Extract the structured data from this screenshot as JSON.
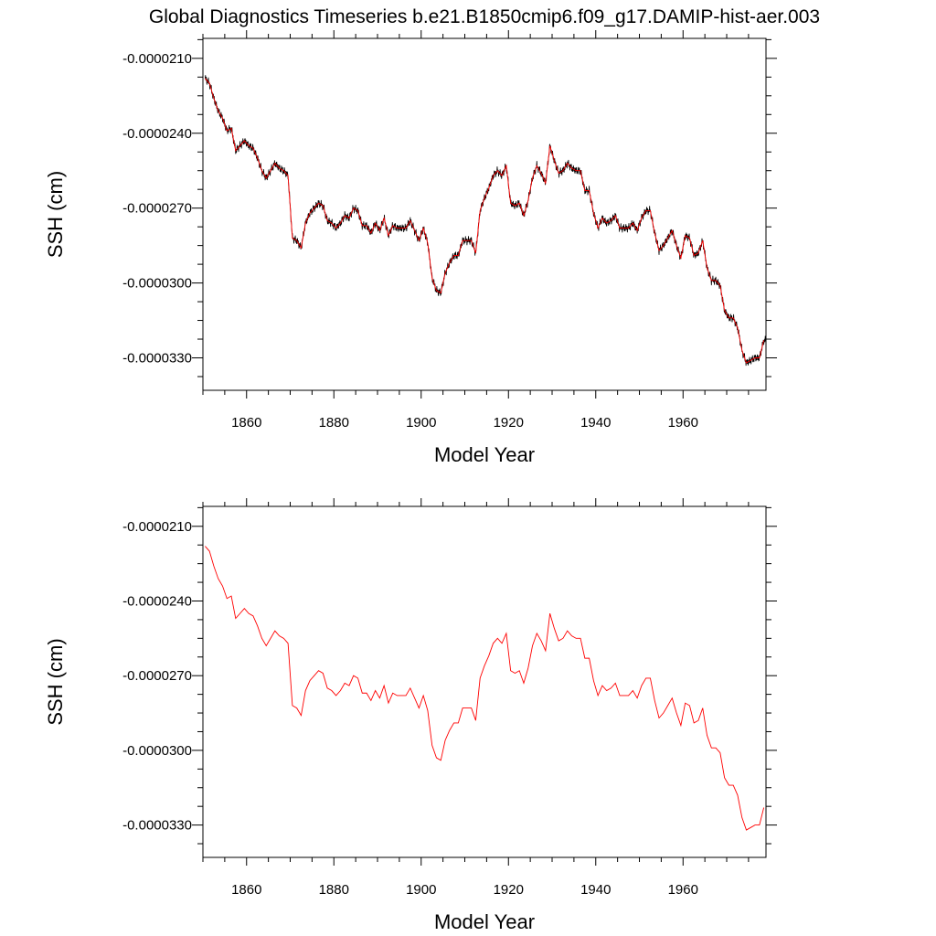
{
  "figure": {
    "title": "Global Diagnostics Timeseries b.e21.B1850cmip6.f09_g17.DAMIP-hist-aer.003"
  },
  "chart_data": [
    {
      "type": "line",
      "title": "",
      "xlabel": "Model Year",
      "ylabel": "SSH (cm)",
      "xlim": [
        1850,
        1979
      ],
      "ylim": [
        -3.43e-05,
        -2.02e-05
      ],
      "xticks": [
        1860,
        1880,
        1900,
        1920,
        1940,
        1960
      ],
      "xtick_labels": [
        "1860",
        "1880",
        "1900",
        "1920",
        "1940",
        "1960"
      ],
      "yticks": [
        -2.1e-05,
        -2.4e-05,
        -2.7e-05,
        -3e-05,
        -3.3e-05
      ],
      "ytick_labels": [
        "-0.0000210",
        "-0.0000240",
        "-0.0000270",
        "-0.0000300",
        "-0.0000330"
      ],
      "grid": false,
      "series": [
        {
          "color": "#000000",
          "style": "monthly",
          "x": [
            1850.5,
            1851.5,
            1852.5,
            1853.5,
            1854.5,
            1855.5,
            1856.5,
            1857.5,
            1858.5,
            1859.5,
            1860.5,
            1861.5,
            1862.5,
            1863.5,
            1864.5,
            1865.5,
            1866.5,
            1867.5,
            1868.5,
            1869.5,
            1870.5,
            1871.5,
            1872.5,
            1873.5,
            1874.5,
            1875.5,
            1876.5,
            1877.5,
            1878.5,
            1879.5,
            1880.5,
            1881.5,
            1882.5,
            1883.5,
            1884.5,
            1885.5,
            1886.5,
            1887.5,
            1888.5,
            1889.5,
            1890.5,
            1891.5,
            1892.5,
            1893.5,
            1894.5,
            1895.5,
            1896.5,
            1897.5,
            1898.5,
            1899.5,
            1900.5,
            1901.5,
            1902.5,
            1903.5,
            1904.5,
            1905.5,
            1906.5,
            1907.5,
            1908.5,
            1909.5,
            1910.5,
            1911.5,
            1912.5,
            1913.5,
            1914.5,
            1915.5,
            1916.5,
            1917.5,
            1918.5,
            1919.5,
            1920.5,
            1921.5,
            1922.5,
            1923.5,
            1924.5,
            1925.5,
            1926.5,
            1927.5,
            1928.5,
            1929.5,
            1930.5,
            1931.5,
            1932.5,
            1933.5,
            1934.5,
            1935.5,
            1936.5,
            1937.5,
            1938.5,
            1939.5,
            1940.5,
            1941.5,
            1942.5,
            1943.5,
            1944.5,
            1945.5,
            1946.5,
            1947.5,
            1948.5,
            1949.5,
            1950.5,
            1951.5,
            1952.5,
            1953.5,
            1954.5,
            1955.5,
            1956.5,
            1957.5,
            1958.5,
            1959.5,
            1960.5,
            1961.5,
            1962.5,
            1963.5,
            1964.5,
            1965.5,
            1966.5,
            1967.5,
            1968.5,
            1969.5,
            1970.5,
            1971.5,
            1972.5,
            1973.5,
            1974.5,
            1975.5,
            1976.5,
            1977.5,
            1978.5
          ],
          "y": [
            -2.18e-05,
            -2.2e-05,
            -2.26e-05,
            -2.31e-05,
            -2.34e-05,
            -2.39e-05,
            -2.38e-05,
            -2.47e-05,
            -2.45e-05,
            -2.43e-05,
            -2.45e-05,
            -2.46e-05,
            -2.5e-05,
            -2.55e-05,
            -2.58e-05,
            -2.55e-05,
            -2.52e-05,
            -2.54e-05,
            -2.55e-05,
            -2.57e-05,
            -2.82e-05,
            -2.83e-05,
            -2.86e-05,
            -2.76e-05,
            -2.72e-05,
            -2.7e-05,
            -2.68e-05,
            -2.69e-05,
            -2.75e-05,
            -2.76e-05,
            -2.78e-05,
            -2.76e-05,
            -2.73e-05,
            -2.74e-05,
            -2.7e-05,
            -2.71e-05,
            -2.77e-05,
            -2.77e-05,
            -2.8e-05,
            -2.76e-05,
            -2.79e-05,
            -2.74e-05,
            -2.81e-05,
            -2.77e-05,
            -2.78e-05,
            -2.78e-05,
            -2.78e-05,
            -2.75e-05,
            -2.79e-05,
            -2.83e-05,
            -2.78e-05,
            -2.84e-05,
            -2.98e-05,
            -3.03e-05,
            -3.04e-05,
            -2.96e-05,
            -2.92e-05,
            -2.89e-05,
            -2.89e-05,
            -2.83e-05,
            -2.83e-05,
            -2.83e-05,
            -2.88e-05,
            -2.71e-05,
            -2.66e-05,
            -2.62e-05,
            -2.57e-05,
            -2.55e-05,
            -2.57e-05,
            -2.53e-05,
            -2.68e-05,
            -2.69e-05,
            -2.68e-05,
            -2.73e-05,
            -2.67e-05,
            -2.58e-05,
            -2.53e-05,
            -2.56e-05,
            -2.6e-05,
            -2.45e-05,
            -2.51e-05,
            -2.56e-05,
            -2.55e-05,
            -2.52e-05,
            -2.54e-05,
            -2.55e-05,
            -2.55e-05,
            -2.63e-05,
            -2.63e-05,
            -2.72e-05,
            -2.78e-05,
            -2.74e-05,
            -2.76e-05,
            -2.75e-05,
            -2.73e-05,
            -2.78e-05,
            -2.78e-05,
            -2.78e-05,
            -2.76e-05,
            -2.79e-05,
            -2.74e-05,
            -2.71e-05,
            -2.71e-05,
            -2.8e-05,
            -2.87e-05,
            -2.85e-05,
            -2.82e-05,
            -2.79e-05,
            -2.85e-05,
            -2.9e-05,
            -2.81e-05,
            -2.82e-05,
            -2.89e-05,
            -2.88e-05,
            -2.83e-05,
            -2.94e-05,
            -2.99e-05,
            -2.99e-05,
            -3.01e-05,
            -3.11e-05,
            -3.14e-05,
            -3.14e-05,
            -3.18e-05,
            -3.27e-05,
            -3.32e-05,
            -3.31e-05,
            -3.3e-05,
            -3.3e-05,
            -3.23e-05
          ]
        },
        {
          "color": "#ff0000",
          "style": "annual",
          "x": [
            1850.5,
            1851.5,
            1852.5,
            1853.5,
            1854.5,
            1855.5,
            1856.5,
            1857.5,
            1858.5,
            1859.5,
            1860.5,
            1861.5,
            1862.5,
            1863.5,
            1864.5,
            1865.5,
            1866.5,
            1867.5,
            1868.5,
            1869.5,
            1870.5,
            1871.5,
            1872.5,
            1873.5,
            1874.5,
            1875.5,
            1876.5,
            1877.5,
            1878.5,
            1879.5,
            1880.5,
            1881.5,
            1882.5,
            1883.5,
            1884.5,
            1885.5,
            1886.5,
            1887.5,
            1888.5,
            1889.5,
            1890.5,
            1891.5,
            1892.5,
            1893.5,
            1894.5,
            1895.5,
            1896.5,
            1897.5,
            1898.5,
            1899.5,
            1900.5,
            1901.5,
            1902.5,
            1903.5,
            1904.5,
            1905.5,
            1906.5,
            1907.5,
            1908.5,
            1909.5,
            1910.5,
            1911.5,
            1912.5,
            1913.5,
            1914.5,
            1915.5,
            1916.5,
            1917.5,
            1918.5,
            1919.5,
            1920.5,
            1921.5,
            1922.5,
            1923.5,
            1924.5,
            1925.5,
            1926.5,
            1927.5,
            1928.5,
            1929.5,
            1930.5,
            1931.5,
            1932.5,
            1933.5,
            1934.5,
            1935.5,
            1936.5,
            1937.5,
            1938.5,
            1939.5,
            1940.5,
            1941.5,
            1942.5,
            1943.5,
            1944.5,
            1945.5,
            1946.5,
            1947.5,
            1948.5,
            1949.5,
            1950.5,
            1951.5,
            1952.5,
            1953.5,
            1954.5,
            1955.5,
            1956.5,
            1957.5,
            1958.5,
            1959.5,
            1960.5,
            1961.5,
            1962.5,
            1963.5,
            1964.5,
            1965.5,
            1966.5,
            1967.5,
            1968.5,
            1969.5,
            1970.5,
            1971.5,
            1972.5,
            1973.5,
            1974.5,
            1975.5,
            1976.5,
            1977.5,
            1978.5
          ],
          "y": [
            -2.18e-05,
            -2.2e-05,
            -2.26e-05,
            -2.31e-05,
            -2.34e-05,
            -2.39e-05,
            -2.38e-05,
            -2.47e-05,
            -2.45e-05,
            -2.43e-05,
            -2.45e-05,
            -2.46e-05,
            -2.5e-05,
            -2.55e-05,
            -2.58e-05,
            -2.55e-05,
            -2.52e-05,
            -2.54e-05,
            -2.55e-05,
            -2.57e-05,
            -2.82e-05,
            -2.83e-05,
            -2.86e-05,
            -2.76e-05,
            -2.72e-05,
            -2.7e-05,
            -2.68e-05,
            -2.69e-05,
            -2.75e-05,
            -2.76e-05,
            -2.78e-05,
            -2.76e-05,
            -2.73e-05,
            -2.74e-05,
            -2.7e-05,
            -2.71e-05,
            -2.77e-05,
            -2.77e-05,
            -2.8e-05,
            -2.76e-05,
            -2.79e-05,
            -2.74e-05,
            -2.81e-05,
            -2.77e-05,
            -2.78e-05,
            -2.78e-05,
            -2.78e-05,
            -2.75e-05,
            -2.79e-05,
            -2.83e-05,
            -2.78e-05,
            -2.84e-05,
            -2.98e-05,
            -3.03e-05,
            -3.04e-05,
            -2.96e-05,
            -2.92e-05,
            -2.89e-05,
            -2.89e-05,
            -2.83e-05,
            -2.83e-05,
            -2.83e-05,
            -2.88e-05,
            -2.71e-05,
            -2.66e-05,
            -2.62e-05,
            -2.57e-05,
            -2.55e-05,
            -2.57e-05,
            -2.53e-05,
            -2.68e-05,
            -2.69e-05,
            -2.68e-05,
            -2.73e-05,
            -2.67e-05,
            -2.58e-05,
            -2.53e-05,
            -2.56e-05,
            -2.6e-05,
            -2.45e-05,
            -2.51e-05,
            -2.56e-05,
            -2.55e-05,
            -2.52e-05,
            -2.54e-05,
            -2.55e-05,
            -2.55e-05,
            -2.63e-05,
            -2.63e-05,
            -2.72e-05,
            -2.78e-05,
            -2.74e-05,
            -2.76e-05,
            -2.75e-05,
            -2.73e-05,
            -2.78e-05,
            -2.78e-05,
            -2.78e-05,
            -2.76e-05,
            -2.79e-05,
            -2.74e-05,
            -2.71e-05,
            -2.71e-05,
            -2.8e-05,
            -2.87e-05,
            -2.85e-05,
            -2.82e-05,
            -2.79e-05,
            -2.85e-05,
            -2.9e-05,
            -2.81e-05,
            -2.82e-05,
            -2.89e-05,
            -2.88e-05,
            -2.83e-05,
            -2.94e-05,
            -2.99e-05,
            -2.99e-05,
            -3.01e-05,
            -3.11e-05,
            -3.14e-05,
            -3.14e-05,
            -3.18e-05,
            -3.27e-05,
            -3.32e-05,
            -3.31e-05,
            -3.3e-05,
            -3.3e-05,
            -3.23e-05
          ]
        }
      ]
    },
    {
      "type": "line",
      "title": "",
      "xlabel": "Model Year",
      "ylabel": "SSH (cm)",
      "xlim": [
        1850,
        1979
      ],
      "ylim": [
        -3.43e-05,
        -2.02e-05
      ],
      "xticks": [
        1860,
        1880,
        1900,
        1920,
        1940,
        1960
      ],
      "xtick_labels": [
        "1860",
        "1880",
        "1900",
        "1920",
        "1940",
        "1960"
      ],
      "yticks": [
        -2.1e-05,
        -2.4e-05,
        -2.7e-05,
        -3e-05,
        -3.3e-05
      ],
      "ytick_labels": [
        "-0.0000210",
        "-0.0000240",
        "-0.0000270",
        "-0.0000300",
        "-0.0000330"
      ],
      "grid": false,
      "series": [
        {
          "color": "#ff0000",
          "style": "annual",
          "x": [
            1850.5,
            1851.5,
            1852.5,
            1853.5,
            1854.5,
            1855.5,
            1856.5,
            1857.5,
            1858.5,
            1859.5,
            1860.5,
            1861.5,
            1862.5,
            1863.5,
            1864.5,
            1865.5,
            1866.5,
            1867.5,
            1868.5,
            1869.5,
            1870.5,
            1871.5,
            1872.5,
            1873.5,
            1874.5,
            1875.5,
            1876.5,
            1877.5,
            1878.5,
            1879.5,
            1880.5,
            1881.5,
            1882.5,
            1883.5,
            1884.5,
            1885.5,
            1886.5,
            1887.5,
            1888.5,
            1889.5,
            1890.5,
            1891.5,
            1892.5,
            1893.5,
            1894.5,
            1895.5,
            1896.5,
            1897.5,
            1898.5,
            1899.5,
            1900.5,
            1901.5,
            1902.5,
            1903.5,
            1904.5,
            1905.5,
            1906.5,
            1907.5,
            1908.5,
            1909.5,
            1910.5,
            1911.5,
            1912.5,
            1913.5,
            1914.5,
            1915.5,
            1916.5,
            1917.5,
            1918.5,
            1919.5,
            1920.5,
            1921.5,
            1922.5,
            1923.5,
            1924.5,
            1925.5,
            1926.5,
            1927.5,
            1928.5,
            1929.5,
            1930.5,
            1931.5,
            1932.5,
            1933.5,
            1934.5,
            1935.5,
            1936.5,
            1937.5,
            1938.5,
            1939.5,
            1940.5,
            1941.5,
            1942.5,
            1943.5,
            1944.5,
            1945.5,
            1946.5,
            1947.5,
            1948.5,
            1949.5,
            1950.5,
            1951.5,
            1952.5,
            1953.5,
            1954.5,
            1955.5,
            1956.5,
            1957.5,
            1958.5,
            1959.5,
            1960.5,
            1961.5,
            1962.5,
            1963.5,
            1964.5,
            1965.5,
            1966.5,
            1967.5,
            1968.5,
            1969.5,
            1970.5,
            1971.5,
            1972.5,
            1973.5,
            1974.5,
            1975.5,
            1976.5,
            1977.5,
            1978.5
          ],
          "y": [
            -2.18e-05,
            -2.2e-05,
            -2.26e-05,
            -2.31e-05,
            -2.34e-05,
            -2.39e-05,
            -2.38e-05,
            -2.47e-05,
            -2.45e-05,
            -2.43e-05,
            -2.45e-05,
            -2.46e-05,
            -2.5e-05,
            -2.55e-05,
            -2.58e-05,
            -2.55e-05,
            -2.52e-05,
            -2.54e-05,
            -2.55e-05,
            -2.57e-05,
            -2.82e-05,
            -2.83e-05,
            -2.86e-05,
            -2.76e-05,
            -2.72e-05,
            -2.7e-05,
            -2.68e-05,
            -2.69e-05,
            -2.75e-05,
            -2.76e-05,
            -2.78e-05,
            -2.76e-05,
            -2.73e-05,
            -2.74e-05,
            -2.7e-05,
            -2.71e-05,
            -2.77e-05,
            -2.77e-05,
            -2.8e-05,
            -2.76e-05,
            -2.79e-05,
            -2.74e-05,
            -2.81e-05,
            -2.77e-05,
            -2.78e-05,
            -2.78e-05,
            -2.78e-05,
            -2.75e-05,
            -2.79e-05,
            -2.83e-05,
            -2.78e-05,
            -2.84e-05,
            -2.98e-05,
            -3.03e-05,
            -3.04e-05,
            -2.96e-05,
            -2.92e-05,
            -2.89e-05,
            -2.89e-05,
            -2.83e-05,
            -2.83e-05,
            -2.83e-05,
            -2.88e-05,
            -2.71e-05,
            -2.66e-05,
            -2.62e-05,
            -2.57e-05,
            -2.55e-05,
            -2.57e-05,
            -2.53e-05,
            -2.68e-05,
            -2.69e-05,
            -2.68e-05,
            -2.73e-05,
            -2.67e-05,
            -2.58e-05,
            -2.53e-05,
            -2.56e-05,
            -2.6e-05,
            -2.45e-05,
            -2.51e-05,
            -2.56e-05,
            -2.55e-05,
            -2.52e-05,
            -2.54e-05,
            -2.55e-05,
            -2.55e-05,
            -2.63e-05,
            -2.63e-05,
            -2.72e-05,
            -2.78e-05,
            -2.74e-05,
            -2.76e-05,
            -2.75e-05,
            -2.73e-05,
            -2.78e-05,
            -2.78e-05,
            -2.78e-05,
            -2.76e-05,
            -2.79e-05,
            -2.74e-05,
            -2.71e-05,
            -2.71e-05,
            -2.8e-05,
            -2.87e-05,
            -2.85e-05,
            -2.82e-05,
            -2.79e-05,
            -2.85e-05,
            -2.9e-05,
            -2.81e-05,
            -2.82e-05,
            -2.89e-05,
            -2.88e-05,
            -2.83e-05,
            -2.94e-05,
            -2.99e-05,
            -2.99e-05,
            -3.01e-05,
            -3.11e-05,
            -3.14e-05,
            -3.14e-05,
            -3.18e-05,
            -3.27e-05,
            -3.32e-05,
            -3.31e-05,
            -3.3e-05,
            -3.3e-05,
            -3.23e-05
          ]
        }
      ]
    }
  ]
}
